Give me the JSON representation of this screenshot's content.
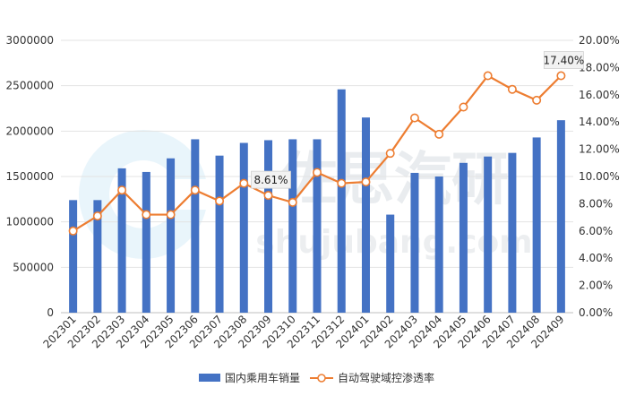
{
  "chart_data": {
    "type": "bar+line",
    "categories": [
      "202301",
      "202302",
      "202303",
      "202304",
      "202305",
      "202306",
      "202307",
      "202308",
      "202309",
      "202310",
      "202311",
      "202312",
      "202401",
      "202402",
      "202403",
      "202404",
      "202405",
      "202406",
      "202407",
      "202408",
      "202409"
    ],
    "series": [
      {
        "name": "国内乘用车销量",
        "type": "bar",
        "axis": "left",
        "color": "#4472C4",
        "values": [
          1240000,
          1240000,
          1590000,
          1550000,
          1700000,
          1910000,
          1730000,
          1870000,
          1900000,
          1910000,
          1910000,
          2460000,
          2150000,
          1080000,
          1540000,
          1500000,
          1650000,
          1720000,
          1760000,
          1930000,
          2120000
        ]
      },
      {
        "name": "自动驾驶域控渗透率",
        "type": "line",
        "axis": "right",
        "color": "#ED7D31",
        "values": [
          6.0,
          7.1,
          9.0,
          7.2,
          7.2,
          9.0,
          8.2,
          9.5,
          8.61,
          8.1,
          10.3,
          9.5,
          9.6,
          11.7,
          14.3,
          13.1,
          15.1,
          17.4,
          16.4,
          15.6,
          17.4
        ]
      }
    ],
    "y_left": {
      "min": 0,
      "max": 3000000,
      "ticks": [
        "0",
        "500000",
        "1000000",
        "1500000",
        "2000000",
        "2500000",
        "3000000"
      ]
    },
    "y_right": {
      "min": 0,
      "max": 20,
      "ticks": [
        "0.00%",
        "2.00%",
        "4.00%",
        "6.00%",
        "8.00%",
        "10.00%",
        "12.00%",
        "14.00%",
        "16.00%",
        "18.00%",
        "20.00%"
      ]
    },
    "annotations": [
      {
        "index": 8,
        "text": "8.61%"
      },
      {
        "index": 20,
        "text": "17.40%"
      }
    ],
    "legend_position": "bottom",
    "grid": true
  },
  "watermark": {
    "text": "佐思汽研",
    "subtext": "shujubang.com"
  }
}
